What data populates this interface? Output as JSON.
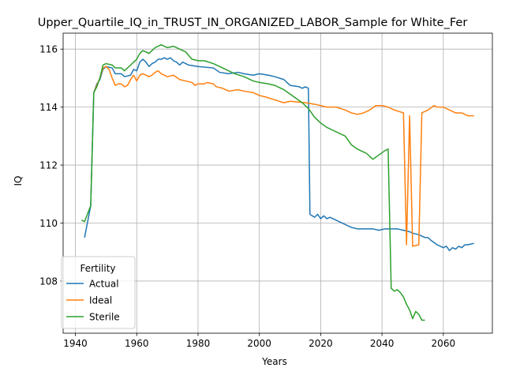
{
  "chart_data": {
    "type": "line",
    "title": "Upper_Quartile_IQ_in_TRUST_IN_ORGANIZED_LABOR_Sample for White_Fer",
    "xlabel": "Years",
    "ylabel": "IQ",
    "xlim": [
      1936,
      2076
    ],
    "ylim": [
      106.2,
      116.55
    ],
    "xticks": [
      1940,
      1960,
      1980,
      2000,
      2020,
      2040,
      2060
    ],
    "yticks": [
      108,
      110,
      112,
      114,
      116
    ],
    "grid": true,
    "legend": {
      "title": "Fertility",
      "placement": "lower-left"
    },
    "series": [
      {
        "name": "Actual",
        "color": "#1f77b4",
        "points": [
          [
            1943,
            109.5
          ],
          [
            1945,
            110.6
          ],
          [
            1946,
            114.5
          ],
          [
            1947,
            114.8
          ],
          [
            1948,
            114.95
          ],
          [
            1949,
            115.3
          ],
          [
            1950,
            115.4
          ],
          [
            1952,
            115.35
          ],
          [
            1953,
            115.15
          ],
          [
            1955,
            115.15
          ],
          [
            1956,
            115.05
          ],
          [
            1958,
            115.1
          ],
          [
            1959,
            115.3
          ],
          [
            1960,
            115.25
          ],
          [
            1961,
            115.55
          ],
          [
            1962,
            115.65
          ],
          [
            1963,
            115.55
          ],
          [
            1964,
            115.4
          ],
          [
            1965,
            115.5
          ],
          [
            1966,
            115.55
          ],
          [
            1967,
            115.65
          ],
          [
            1968,
            115.65
          ],
          [
            1969,
            115.7
          ],
          [
            1970,
            115.65
          ],
          [
            1971,
            115.7
          ],
          [
            1972,
            115.6
          ],
          [
            1973,
            115.55
          ],
          [
            1974,
            115.45
          ],
          [
            1975,
            115.55
          ],
          [
            1977,
            115.45
          ],
          [
            1980,
            115.4
          ],
          [
            1985,
            115.35
          ],
          [
            1987,
            115.2
          ],
          [
            1990,
            115.15
          ],
          [
            1993,
            115.2
          ],
          [
            1995,
            115.15
          ],
          [
            1998,
            115.1
          ],
          [
            2000,
            115.15
          ],
          [
            2003,
            115.1
          ],
          [
            2005,
            115.05
          ],
          [
            2008,
            114.95
          ],
          [
            2010,
            114.75
          ],
          [
            2013,
            114.7
          ],
          [
            2014,
            114.65
          ],
          [
            2015,
            114.7
          ],
          [
            2016,
            114.65
          ],
          [
            2016.5,
            110.3
          ],
          [
            2018,
            110.2
          ],
          [
            2019,
            110.3
          ],
          [
            2020,
            110.15
          ],
          [
            2021,
            110.25
          ],
          [
            2022,
            110.15
          ],
          [
            2023,
            110.2
          ],
          [
            2025,
            110.1
          ],
          [
            2028,
            109.95
          ],
          [
            2030,
            109.85
          ],
          [
            2032,
            109.8
          ],
          [
            2035,
            109.8
          ],
          [
            2037,
            109.8
          ],
          [
            2039,
            109.75
          ],
          [
            2041,
            109.8
          ],
          [
            2045,
            109.8
          ],
          [
            2047,
            109.75
          ],
          [
            2049,
            109.7
          ],
          [
            2050,
            109.65
          ],
          [
            2052,
            109.6
          ],
          [
            2054,
            109.5
          ],
          [
            2055,
            109.5
          ],
          [
            2056,
            109.4
          ],
          [
            2058,
            109.25
          ],
          [
            2059,
            109.2
          ],
          [
            2060,
            109.15
          ],
          [
            2061,
            109.2
          ],
          [
            2062,
            109.05
          ],
          [
            2063,
            109.15
          ],
          [
            2064,
            109.1
          ],
          [
            2065,
            109.2
          ],
          [
            2066,
            109.15
          ],
          [
            2067,
            109.25
          ],
          [
            2068,
            109.25
          ],
          [
            2070,
            109.3
          ]
        ]
      },
      {
        "name": "Ideal",
        "color": "#ff7f0e",
        "points": [
          [
            1946,
            114.5
          ],
          [
            1947,
            114.75
          ],
          [
            1948,
            115.0
          ],
          [
            1949,
            115.35
          ],
          [
            1950,
            115.4
          ],
          [
            1951,
            115.3
          ],
          [
            1952,
            115.0
          ],
          [
            1953,
            114.75
          ],
          [
            1954,
            114.8
          ],
          [
            1955,
            114.8
          ],
          [
            1956,
            114.7
          ],
          [
            1957,
            114.75
          ],
          [
            1958,
            114.95
          ],
          [
            1959,
            115.1
          ],
          [
            1960,
            114.9
          ],
          [
            1961,
            115.1
          ],
          [
            1962,
            115.15
          ],
          [
            1963,
            115.1
          ],
          [
            1964,
            115.05
          ],
          [
            1965,
            115.1
          ],
          [
            1966,
            115.2
          ],
          [
            1967,
            115.25
          ],
          [
            1968,
            115.15
          ],
          [
            1970,
            115.05
          ],
          [
            1972,
            115.1
          ],
          [
            1974,
            114.95
          ],
          [
            1976,
            114.9
          ],
          [
            1978,
            114.85
          ],
          [
            1979,
            114.75
          ],
          [
            1980,
            114.8
          ],
          [
            1982,
            114.8
          ],
          [
            1983,
            114.85
          ],
          [
            1985,
            114.8
          ],
          [
            1986,
            114.7
          ],
          [
            1988,
            114.65
          ],
          [
            1990,
            114.55
          ],
          [
            1993,
            114.6
          ],
          [
            1995,
            114.55
          ],
          [
            1998,
            114.5
          ],
          [
            2000,
            114.4
          ],
          [
            2002,
            114.35
          ],
          [
            2005,
            114.25
          ],
          [
            2008,
            114.15
          ],
          [
            2010,
            114.2
          ],
          [
            2015,
            114.15
          ],
          [
            2018,
            114.1
          ],
          [
            2020,
            114.05
          ],
          [
            2022,
            114.0
          ],
          [
            2025,
            114.0
          ],
          [
            2028,
            113.9
          ],
          [
            2030,
            113.8
          ],
          [
            2032,
            113.75
          ],
          [
            2034,
            113.8
          ],
          [
            2036,
            113.9
          ],
          [
            2038,
            114.05
          ],
          [
            2040,
            114.05
          ],
          [
            2042,
            114.0
          ],
          [
            2044,
            113.9
          ],
          [
            2047,
            113.8
          ],
          [
            2048,
            109.25
          ],
          [
            2049,
            113.7
          ],
          [
            2050,
            109.2
          ],
          [
            2052,
            109.25
          ],
          [
            2053,
            113.8
          ],
          [
            2055,
            113.9
          ],
          [
            2057,
            114.05
          ],
          [
            2058,
            114.0
          ],
          [
            2060,
            114.0
          ],
          [
            2062,
            113.9
          ],
          [
            2064,
            113.8
          ],
          [
            2066,
            113.8
          ],
          [
            2068,
            113.7
          ],
          [
            2070,
            113.7
          ]
        ]
      },
      {
        "name": "Sterile",
        "color": "#2ca02c",
        "points": [
          [
            1942,
            110.1
          ],
          [
            1943,
            110.05
          ],
          [
            1945,
            110.6
          ],
          [
            1946,
            114.5
          ],
          [
            1947,
            114.7
          ],
          [
            1948,
            115.0
          ],
          [
            1949,
            115.45
          ],
          [
            1950,
            115.5
          ],
          [
            1952,
            115.45
          ],
          [
            1953,
            115.35
          ],
          [
            1955,
            115.35
          ],
          [
            1956,
            115.25
          ],
          [
            1958,
            115.45
          ],
          [
            1959,
            115.55
          ],
          [
            1960,
            115.65
          ],
          [
            1961,
            115.85
          ],
          [
            1962,
            115.95
          ],
          [
            1963,
            115.9
          ],
          [
            1964,
            115.85
          ],
          [
            1965,
            115.95
          ],
          [
            1966,
            116.05
          ],
          [
            1967,
            116.1
          ],
          [
            1968,
            116.15
          ],
          [
            1969,
            116.1
          ],
          [
            1970,
            116.05
          ],
          [
            1972,
            116.1
          ],
          [
            1974,
            116.0
          ],
          [
            1976,
            115.9
          ],
          [
            1978,
            115.65
          ],
          [
            1980,
            115.6
          ],
          [
            1982,
            115.6
          ],
          [
            1985,
            115.5
          ],
          [
            1987,
            115.4
          ],
          [
            1990,
            115.25
          ],
          [
            1992,
            115.15
          ],
          [
            1995,
            115.05
          ],
          [
            1998,
            114.9
          ],
          [
            2000,
            114.85
          ],
          [
            2003,
            114.8
          ],
          [
            2005,
            114.75
          ],
          [
            2008,
            114.6
          ],
          [
            2010,
            114.45
          ],
          [
            2012,
            114.3
          ],
          [
            2014,
            114.15
          ],
          [
            2015,
            114.05
          ],
          [
            2016,
            113.95
          ],
          [
            2018,
            113.65
          ],
          [
            2020,
            113.45
          ],
          [
            2022,
            113.3
          ],
          [
            2024,
            113.2
          ],
          [
            2026,
            113.1
          ],
          [
            2028,
            113.0
          ],
          [
            2030,
            112.7
          ],
          [
            2032,
            112.55
          ],
          [
            2034,
            112.45
          ],
          [
            2035,
            112.4
          ],
          [
            2036,
            112.3
          ],
          [
            2037,
            112.2
          ],
          [
            2039,
            112.35
          ],
          [
            2041,
            112.5
          ],
          [
            2042,
            112.55
          ],
          [
            2043,
            107.75
          ],
          [
            2044,
            107.65
          ],
          [
            2045,
            107.7
          ],
          [
            2046,
            107.6
          ],
          [
            2047,
            107.45
          ],
          [
            2048,
            107.2
          ],
          [
            2049,
            107.0
          ],
          [
            2050,
            106.7
          ],
          [
            2051,
            106.95
          ],
          [
            2052,
            106.85
          ],
          [
            2053,
            106.65
          ],
          [
            2054,
            106.65
          ]
        ]
      }
    ]
  }
}
